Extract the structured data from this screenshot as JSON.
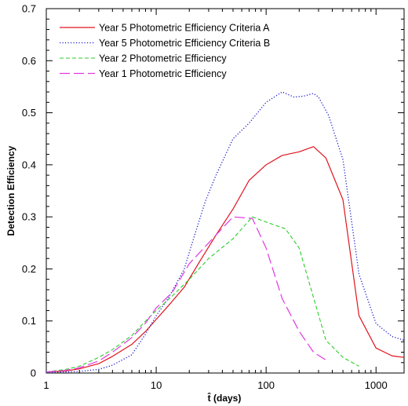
{
  "chart_data": {
    "type": "line",
    "xlabel": "t̂  (days)",
    "ylabel": "Detection Efficiency",
    "xscale": "log",
    "xlim": [
      1,
      1800
    ],
    "ylim": [
      0,
      0.7
    ],
    "x_ticks": [
      "1",
      "10",
      "100",
      "1000"
    ],
    "y_ticks": [
      "0",
      "0.1",
      "0.2",
      "0.3",
      "0.4",
      "0.5",
      "0.6",
      "0.7"
    ],
    "legend_position": "top-left",
    "series": [
      {
        "name": "Year 5 Photometric Efficiency Criteria A",
        "color": "#e0141e",
        "style": "solid",
        "x": [
          1,
          1.5,
          2,
          3,
          4,
          6,
          8,
          10,
          13,
          18,
          25,
          35,
          50,
          70,
          100,
          140,
          200,
          270,
          350,
          500,
          700,
          1000,
          1400,
          1800
        ],
        "y": [
          0.002,
          0.004,
          0.008,
          0.018,
          0.032,
          0.055,
          0.08,
          0.103,
          0.13,
          0.165,
          0.215,
          0.265,
          0.315,
          0.37,
          0.4,
          0.418,
          0.425,
          0.435,
          0.413,
          0.333,
          0.11,
          0.048,
          0.033,
          0.03
        ]
      },
      {
        "name": "Year 5 Photometric Efficiency Criteria B",
        "color": "#1818cc",
        "style": "dotted",
        "x": [
          1,
          1.5,
          2,
          3,
          4,
          6,
          8,
          10,
          13,
          18,
          22,
          28,
          35,
          50,
          70,
          100,
          140,
          180,
          220,
          270,
          300,
          370,
          500,
          700,
          1000,
          1400,
          1800
        ],
        "y": [
          0.001,
          0.002,
          0.003,
          0.007,
          0.015,
          0.035,
          0.075,
          0.11,
          0.145,
          0.2,
          0.26,
          0.33,
          0.38,
          0.45,
          0.48,
          0.52,
          0.54,
          0.53,
          0.532,
          0.537,
          0.53,
          0.495,
          0.41,
          0.19,
          0.095,
          0.07,
          0.063
        ]
      },
      {
        "name": "Year 2 Photometric Efficiency",
        "color": "#2ccc2c",
        "style": "dashed",
        "x": [
          1,
          1.5,
          2,
          3,
          4,
          6,
          8,
          10,
          14,
          20,
          30,
          50,
          75,
          100,
          150,
          200,
          270,
          350,
          500,
          700
        ],
        "y": [
          0.002,
          0.007,
          0.013,
          0.03,
          0.045,
          0.072,
          0.1,
          0.12,
          0.148,
          0.18,
          0.22,
          0.258,
          0.3,
          0.29,
          0.277,
          0.24,
          0.145,
          0.063,
          0.03,
          0.013
        ]
      },
      {
        "name": "Year 1 Photometric Efficiency",
        "color": "#e038e0",
        "style": "longdash",
        "x": [
          1,
          1.5,
          2,
          3,
          4,
          6,
          8,
          10,
          14,
          20,
          30,
          50,
          75,
          100,
          140,
          200,
          270,
          350
        ],
        "y": [
          0.002,
          0.005,
          0.01,
          0.023,
          0.04,
          0.068,
          0.096,
          0.125,
          0.155,
          0.21,
          0.25,
          0.3,
          0.297,
          0.24,
          0.143,
          0.08,
          0.04,
          0.025
        ]
      }
    ]
  }
}
